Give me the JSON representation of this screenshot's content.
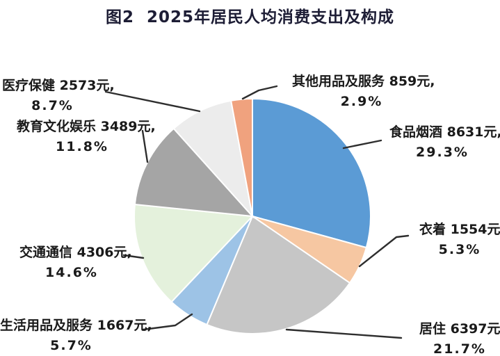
{
  "title": "图2  2025年居民人均消费支出及构成",
  "chart_data": {
    "type": "pie",
    "title": "图2  2025年居民人均消费支出及构成",
    "unit": "元",
    "direction": "clockwise",
    "start_angle": "12-oclock",
    "total_percent": 100,
    "slices": [
      {
        "key": "food-tobacco-alcohol",
        "label": "食品烟酒",
        "value": 8631,
        "percent": 29.3,
        "color": "#5B9BD5",
        "label_line1": "食品烟酒 8631元,",
        "label_line2": "29.3%"
      },
      {
        "key": "clothing",
        "label": "衣着",
        "value": 1554,
        "percent": 5.3,
        "color": "#F6C7A2",
        "label_line1": "衣着 1554元,",
        "label_line2": "5.3%"
      },
      {
        "key": "housing",
        "label": "居住",
        "value": 6397,
        "percent": 21.7,
        "color": "#C6C6C6",
        "label_line1": "居住 6397元,",
        "label_line2": "21.7%"
      },
      {
        "key": "household-goods-services",
        "label": "生活用品及服务",
        "value": 1667,
        "percent": 5.7,
        "color": "#9DC3E6",
        "label_line1": "生活用品及服务 1667元,",
        "label_line2": "5.7%"
      },
      {
        "key": "transport-communication",
        "label": "交通通信",
        "value": 4306,
        "percent": 14.6,
        "color": "#E4F1DC",
        "label_line1": "交通通信 4306元,",
        "label_line2": "14.6%"
      },
      {
        "key": "education-culture-entertainment",
        "label": "教育文化娱乐",
        "value": 3489,
        "percent": 11.8,
        "color": "#A5A5A5",
        "label_line1": "教育文化娱乐 3489元,",
        "label_line2": "11.8%"
      },
      {
        "key": "healthcare",
        "label": "医疗保健",
        "value": 2573,
        "percent": 8.7,
        "color": "#ECECEC",
        "label_line1": "医疗保健 2573元,",
        "label_line2": "8.7%"
      },
      {
        "key": "other-goods-services",
        "label": "其他用品及服务",
        "value": 859,
        "percent": 2.9,
        "color": "#F0A27E",
        "label_line1": "其他用品及服务 859元,",
        "label_line2": "2.9%"
      }
    ]
  }
}
